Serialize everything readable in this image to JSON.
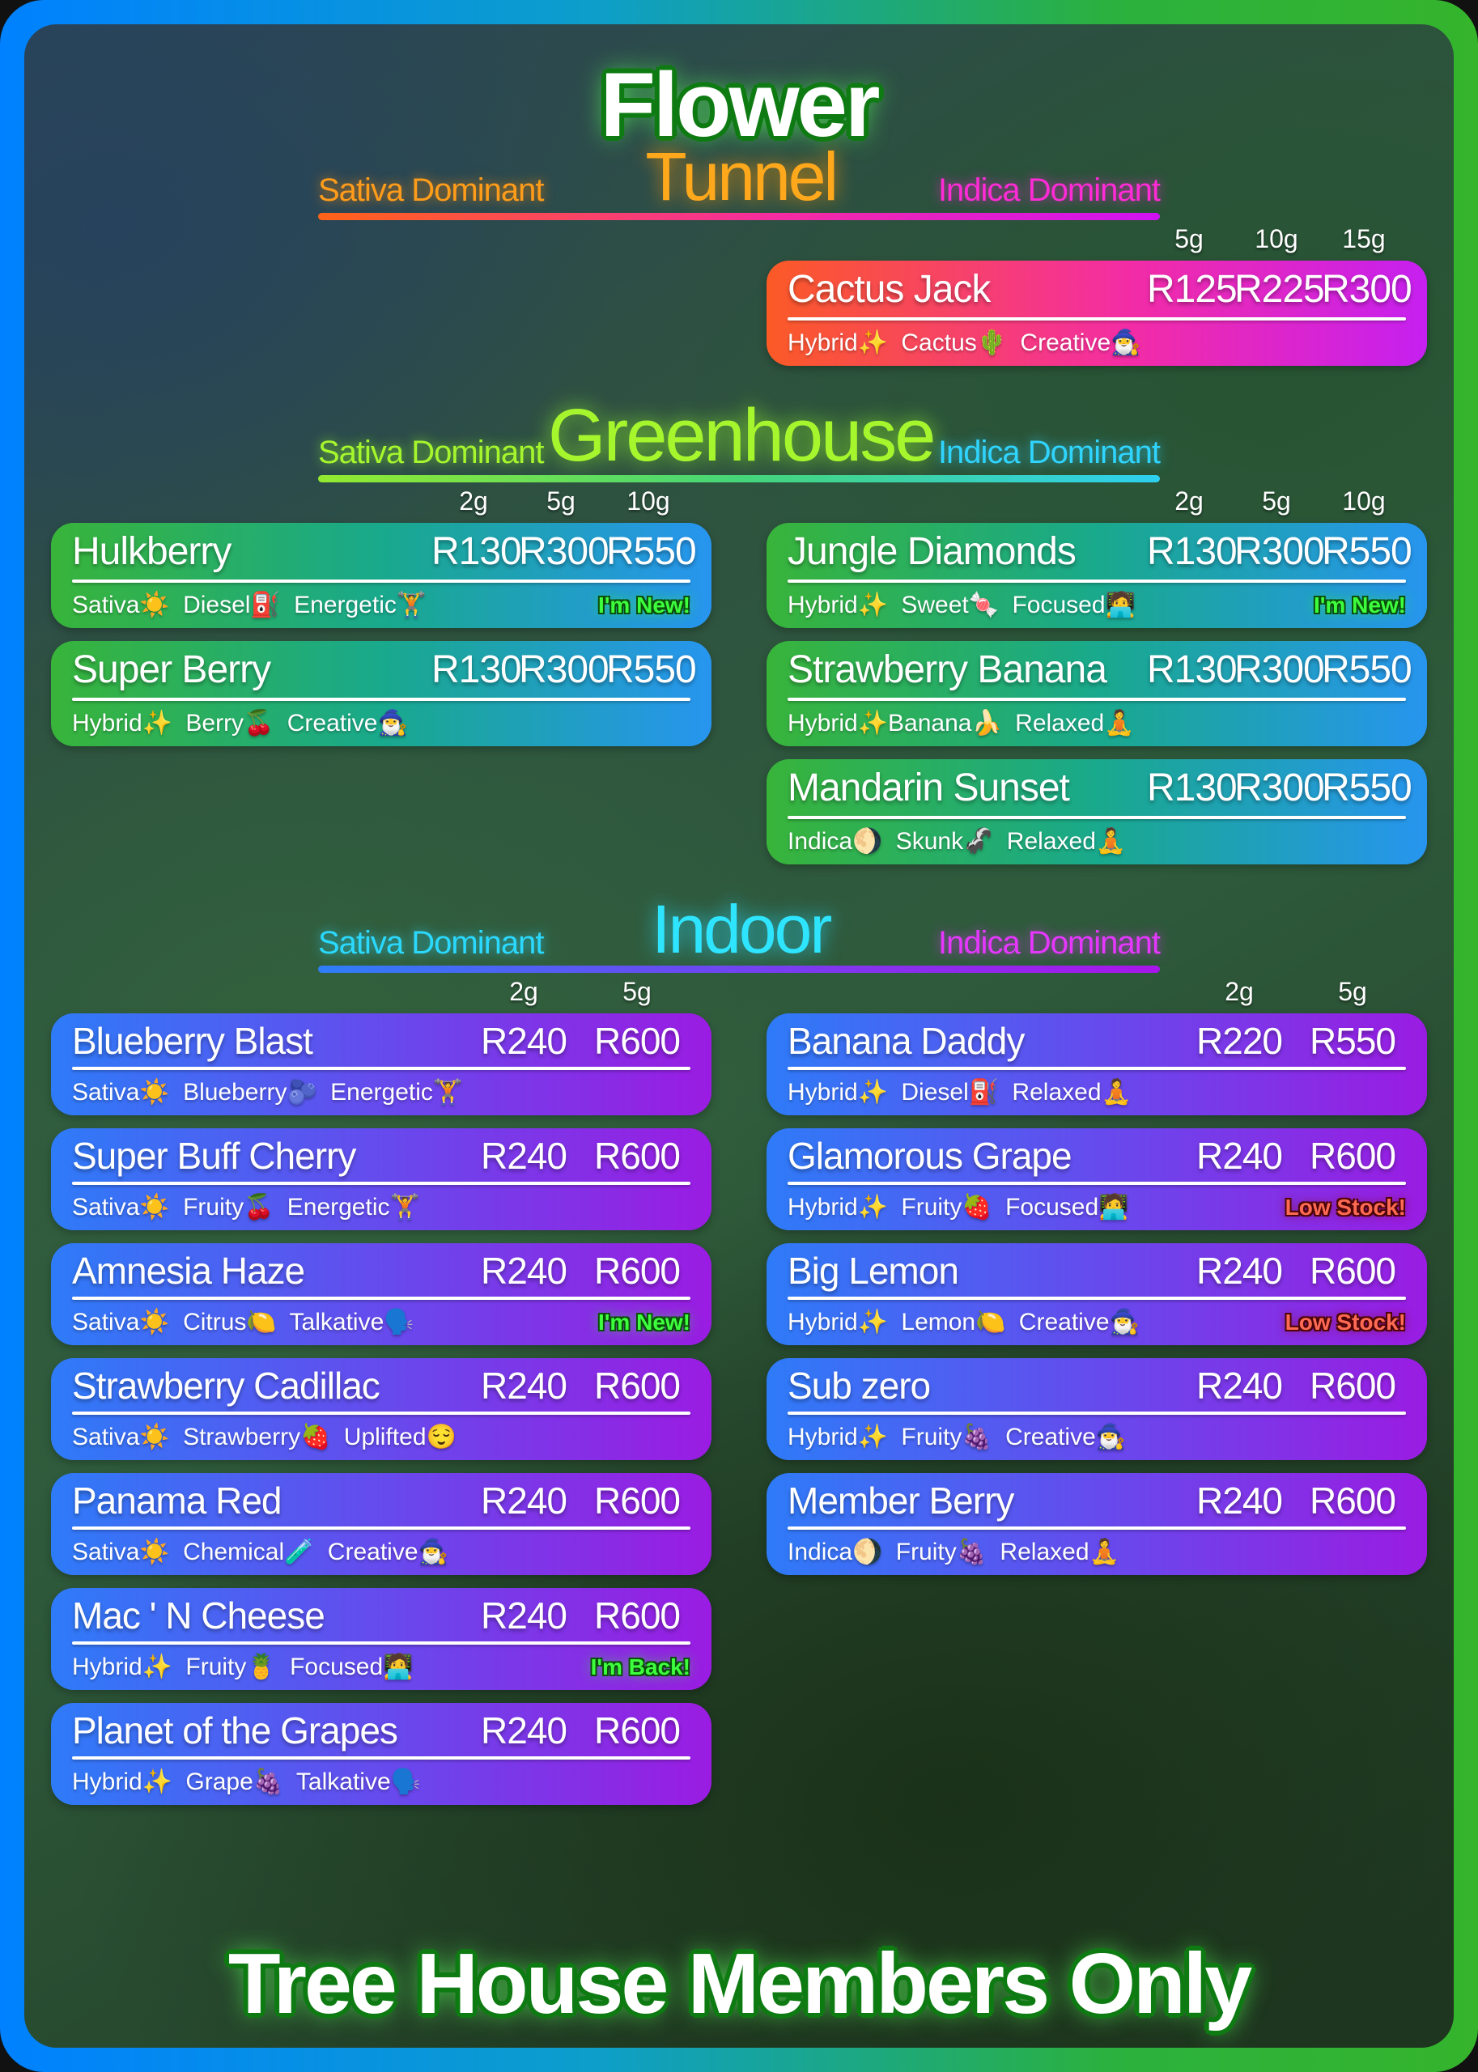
{
  "footer": {
    "text": "Tree House Members Only"
  },
  "colors": {
    "frame_left": "#0081ff",
    "frame_right": "#35b42c",
    "tunnel_card_gradient": [
      "#fb5a26",
      "#c620f0"
    ],
    "greenhouse_card_gradient": [
      "#38b43a",
      "#2795ef"
    ],
    "indoor_card_gradient": [
      "#2e7bf8",
      "#9a1ce2"
    ],
    "badge_new_color": "#3eff3e",
    "badge_low_color": "#ff6a55",
    "title_flower_fill": "#ffffff",
    "title_flower_outline": "#0e7a12",
    "title_tunnel": "#ffa81c",
    "title_greenhouse": "#a6f62e",
    "title_indoor": "#2ee4ff"
  },
  "sections": [
    {
      "id": "tunnel",
      "title_primary": "Flower",
      "title": "Tunnel",
      "sativa_label": "Sativa Dominant",
      "indica_label": "Indica Dominant",
      "columns": [
        "5g",
        "10g",
        "15g"
      ],
      "left": [],
      "right": [
        {
          "name": "Cactus Jack",
          "prices": [
            "R125",
            "R225",
            "R300"
          ],
          "traits": "Hybrid✨ Cactus🌵 Creative🧙‍♂️",
          "badge": null,
          "badge_type": null
        }
      ]
    },
    {
      "id": "greenhouse",
      "title": "Greenhouse",
      "sativa_label": "Sativa Dominant",
      "indica_label": "Indica Dominant",
      "columns": [
        "2g",
        "5g",
        "10g"
      ],
      "left": [
        {
          "name": "Hulkberry",
          "prices": [
            "R130",
            "R300",
            "R550"
          ],
          "traits": "Sativa☀️ Diesel⛽ Energetic🏋️",
          "badge": "I'm New!",
          "badge_type": "new"
        },
        {
          "name": "Super Berry",
          "prices": [
            "R130",
            "R300",
            "R550"
          ],
          "traits": "Hybrid✨ Berry🍒 Creative🧙‍♂️",
          "badge": null,
          "badge_type": null
        }
      ],
      "right": [
        {
          "name": "Jungle Diamonds",
          "prices": [
            "R130",
            "R300",
            "R550"
          ],
          "traits": "Hybrid✨ Sweet🍬 Focused🧑‍💻",
          "badge": "I'm New!",
          "badge_type": "new"
        },
        {
          "name": "Strawberry Banana",
          "prices": [
            "R130",
            "R300",
            "R550"
          ],
          "traits": "Hybrid✨Banana🍌 Relaxed🧘",
          "badge": null,
          "badge_type": null
        },
        {
          "name": "Mandarin Sunset",
          "prices": [
            "R130",
            "R300",
            "R550"
          ],
          "traits": "Indica🌖 Skunk🦨 Relaxed🧘",
          "badge": null,
          "badge_type": null
        }
      ]
    },
    {
      "id": "indoor",
      "title": "Indoor",
      "sativa_label": "Sativa Dominant",
      "indica_label": "Indica Dominant",
      "columns": [
        "2g",
        "5g"
      ],
      "left": [
        {
          "name": "Blueberry Blast",
          "prices": [
            "R240",
            "R600"
          ],
          "traits": "Sativa☀️ Blueberry🫐 Energetic🏋️",
          "badge": null,
          "badge_type": null
        },
        {
          "name": "Super Buff Cherry",
          "prices": [
            "R240",
            "R600"
          ],
          "traits": "Sativa☀️ Fruity🍒 Energetic🏋️",
          "badge": null,
          "badge_type": null
        },
        {
          "name": "Amnesia Haze",
          "prices": [
            "R240",
            "R600"
          ],
          "traits": "Sativa☀️ Citrus🍋 Talkative🗣️",
          "badge": "I'm New!",
          "badge_type": "new"
        },
        {
          "name": "Strawberry Cadillac",
          "prices": [
            "R240",
            "R600"
          ],
          "traits": "Sativa☀️ Strawberry🍓 Uplifted😌",
          "badge": null,
          "badge_type": null
        },
        {
          "name": "Panama Red",
          "prices": [
            "R240",
            "R600"
          ],
          "traits": "Sativa☀️ Chemical🧪 Creative🧙‍♂️",
          "badge": null,
          "badge_type": null
        },
        {
          "name": "Mac ' N Cheese",
          "prices": [
            "R240",
            "R600"
          ],
          "traits": "Hybrid✨ Fruity🍍 Focused🧑‍💻",
          "badge": "I'm Back!",
          "badge_type": "back"
        },
        {
          "name": "Planet of the Grapes",
          "prices": [
            "R240",
            "R600"
          ],
          "traits": "Hybrid✨ Grape🍇 Talkative🗣️",
          "badge": null,
          "badge_type": null
        }
      ],
      "right": [
        {
          "name": "Banana Daddy",
          "prices": [
            "R220",
            "R550"
          ],
          "traits": "Hybrid✨ Diesel⛽ Relaxed🧘",
          "badge": null,
          "badge_type": null
        },
        {
          "name": "Glamorous Grape",
          "prices": [
            "R240",
            "R600"
          ],
          "traits": "Hybrid✨ Fruity🍓 Focused🧑‍💻",
          "badge": "Low Stock!",
          "badge_type": "low"
        },
        {
          "name": "Big Lemon",
          "prices": [
            "R240",
            "R600"
          ],
          "traits": "Hybrid✨ Lemon🍋 Creative🧙‍♂️",
          "badge": "Low Stock!",
          "badge_type": "low"
        },
        {
          "name": "Sub zero",
          "prices": [
            "R240",
            "R600"
          ],
          "traits": "Hybrid✨ Fruity🍇 Creative🧙‍♂️",
          "badge": null,
          "badge_type": null
        },
        {
          "name": "Member Berry",
          "prices": [
            "R240",
            "R600"
          ],
          "traits": "Indica🌖 Fruity🍇 Relaxed🧘",
          "badge": null,
          "badge_type": null
        }
      ]
    }
  ]
}
